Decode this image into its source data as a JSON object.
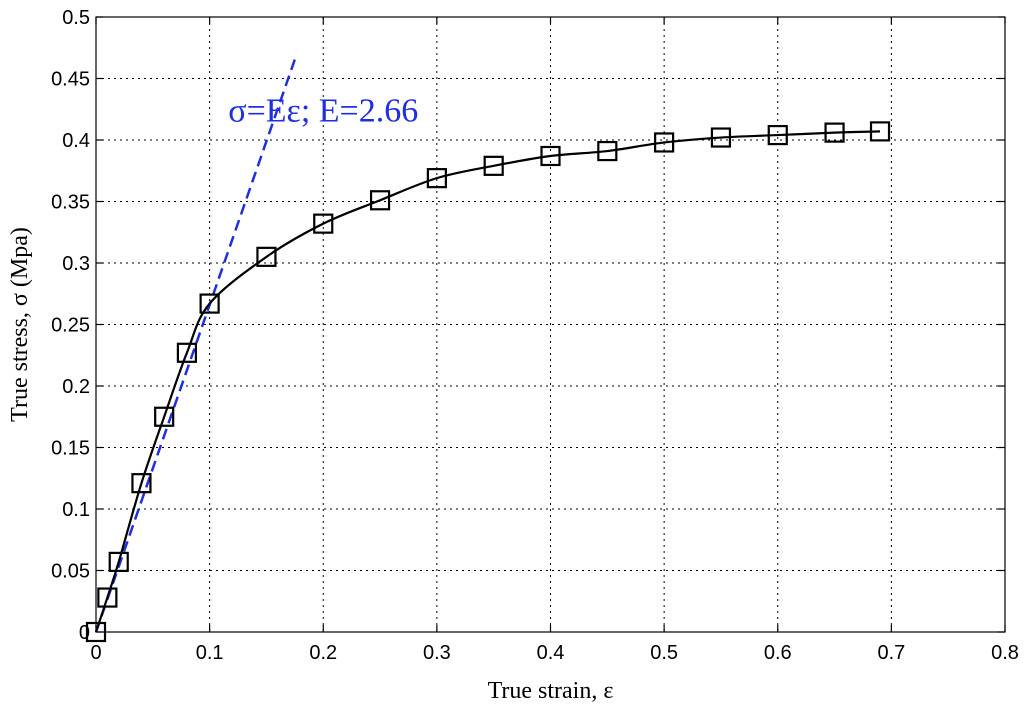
{
  "chart_data": {
    "type": "line",
    "xlabel": "True strain, ε",
    "ylabel": "True stress, σ (Mpa)",
    "xlim": [
      0,
      0.8
    ],
    "ylim": [
      0,
      0.5
    ],
    "xticks": [
      "0",
      "0.1",
      "0.2",
      "0.3",
      "0.4",
      "0.5",
      "0.6",
      "0.7",
      "0.8"
    ],
    "yticks": [
      "0",
      "0.05",
      "0.1",
      "0.15",
      "0.2",
      "0.25",
      "0.3",
      "0.35",
      "0.4",
      "0.45",
      "0.5"
    ],
    "grid": true,
    "series": [
      {
        "style": "solid-with-square-markers",
        "color": "#000000",
        "x": [
          0,
          0.01,
          0.02,
          0.04,
          0.06,
          0.08,
          0.1,
          0.15,
          0.2,
          0.25,
          0.3,
          0.35,
          0.4,
          0.45,
          0.5,
          0.55,
          0.6,
          0.65,
          0.69
        ],
        "y": [
          0,
          0.028,
          0.057,
          0.121,
          0.175,
          0.227,
          0.267,
          0.305,
          0.332,
          0.351,
          0.369,
          0.379,
          0.387,
          0.391,
          0.398,
          0.402,
          0.404,
          0.406,
          0.407
        ]
      },
      {
        "style": "dashed",
        "color": "#1f2ee0",
        "x": [
          0,
          0.175
        ],
        "y": [
          0,
          0.4655
        ]
      }
    ],
    "annotations": [
      {
        "text": "σ=Eε; E=2.66",
        "x": 0.2,
        "y": 0.415,
        "color": "#1f2ee0"
      }
    ]
  }
}
